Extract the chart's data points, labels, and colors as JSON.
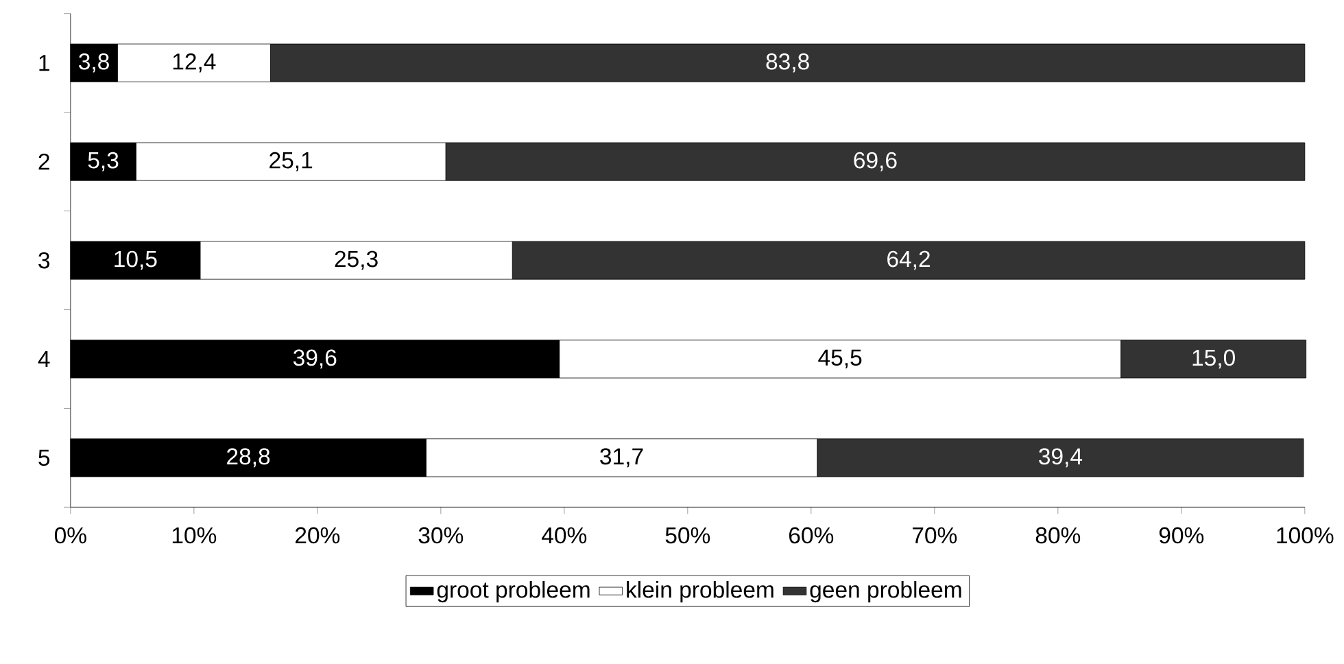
{
  "chart_data": {
    "type": "bar",
    "orientation": "horizontal",
    "stacked": true,
    "categories": [
      "1",
      "2",
      "3",
      "4",
      "5"
    ],
    "series": [
      {
        "name": "groot probleem",
        "color": "#000000",
        "values": [
          3.8,
          5.3,
          10.5,
          39.6,
          28.8
        ],
        "value_labels": [
          "3,8",
          "5,3",
          "10,5",
          "39,6",
          "28,8"
        ]
      },
      {
        "name": "klein probleem",
        "color": "#ffffff",
        "values": [
          12.4,
          25.1,
          25.3,
          45.5,
          31.7
        ],
        "value_labels": [
          "12,4",
          "25,1",
          "25,3",
          "45,5",
          "31,7"
        ]
      },
      {
        "name": "geen probleem",
        "color": "#333333",
        "values": [
          83.8,
          69.6,
          64.2,
          15.0,
          39.4
        ],
        "value_labels": [
          "83,8",
          "69,6",
          "64,2",
          "15,0",
          "39,4"
        ]
      }
    ],
    "xlim": [
      0,
      100
    ],
    "xticks": [
      {
        "value": 0,
        "label": "0%"
      },
      {
        "value": 10,
        "label": "10%"
      },
      {
        "value": 20,
        "label": "20%"
      },
      {
        "value": 30,
        "label": "30%"
      },
      {
        "value": 40,
        "label": "40%"
      },
      {
        "value": 50,
        "label": "50%"
      },
      {
        "value": 60,
        "label": "60%"
      },
      {
        "value": 70,
        "label": "70%"
      },
      {
        "value": 80,
        "label": "80%"
      },
      {
        "value": 90,
        "label": "90%"
      },
      {
        "value": 100,
        "label": "100%"
      }
    ],
    "grid": false,
    "legend": "bottom"
  }
}
